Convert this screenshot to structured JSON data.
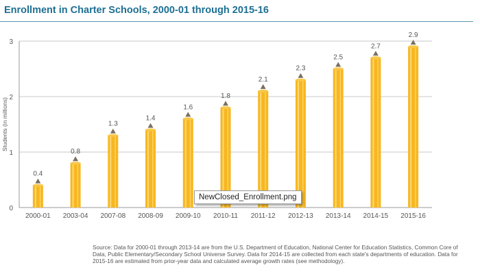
{
  "chart_data": {
    "type": "bar",
    "title": "Enrollment in Charter Schools, 2000-01 through 2015-16",
    "ylabel": "Students (in millions)",
    "xlabel": "",
    "ylim": [
      0,
      3
    ],
    "yticks": [
      "0",
      "1",
      "2",
      "3"
    ],
    "categories": [
      "2000-01",
      "2003-04",
      "2007-08",
      "2008-09",
      "2009-10",
      "2010-11",
      "2011-12",
      "2012-13",
      "2013-14",
      "2014-15",
      "2015-16"
    ],
    "values": [
      0.4,
      0.8,
      1.3,
      1.4,
      1.6,
      1.8,
      2.1,
      2.3,
      2.5,
      2.7,
      2.9
    ],
    "value_labels": [
      "0.4",
      "0.8",
      "1.3",
      "1.4",
      "1.6",
      "1.8",
      "2.1",
      "2.3",
      "2.5",
      "2.7",
      "2.9"
    ],
    "grid": true,
    "legend": "none",
    "colors": {
      "title": "#1d6f93",
      "bar": "#f7b720",
      "bar_highlight": "#fdd978",
      "marker": "#7a7060",
      "grid": "#c8c8c8"
    }
  },
  "tooltip": "NewClosed_Enrollment.png",
  "source_note": "Source: Data for 2000-01 through 2013-14 are from the U.S. Department of Education, National Center for Education Statistics, Common Core of Data, Public Elementary/Secondary School Universe Survey. Data for 2014-15 are collected from each state's departments of education. Data for 2015-16 are estimated from prior-year data and calculated average growth rates (see methodology)."
}
